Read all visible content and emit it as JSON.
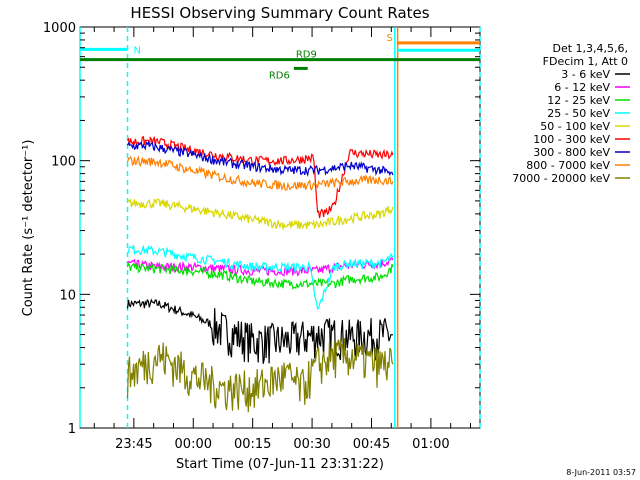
{
  "chart_data": {
    "type": "line",
    "title": "HESSI Observing Summary Count Rates",
    "xlabel": "Start Time (07-Jun-11 23:31:22)",
    "ylabel": "Count Rate (s⁻¹ detector⁻¹)",
    "y_scale": "log",
    "ylim": [
      1,
      1000
    ],
    "y_ticks": [
      {
        "value": 1,
        "label": "1"
      },
      {
        "value": 10,
        "label": "10"
      },
      {
        "value": 100,
        "label": "100"
      },
      {
        "value": 1000,
        "label": "1000"
      }
    ],
    "x_unit": "minutes after 23:31:22",
    "xlim": [
      0,
      101
    ],
    "x_ticks": [
      {
        "value": 13.6,
        "label": "23:45"
      },
      {
        "value": 28.6,
        "label": "00:00"
      },
      {
        "value": 43.6,
        "label": "00:15"
      },
      {
        "value": 58.6,
        "label": "00:30"
      },
      {
        "value": 73.6,
        "label": "00:45"
      },
      {
        "value": 88.6,
        "label": "01:00"
      }
    ],
    "legend": {
      "placement": "right",
      "header_lines": [
        "Det 1,3,4,5,6,",
        "FDecim 1, Att 0"
      ]
    },
    "series": [
      {
        "name": "3 - 6 keV",
        "color": "#000000",
        "x": [
          12,
          20,
          28,
          36,
          44,
          52,
          60,
          64,
          68,
          76,
          79
        ],
        "values": [
          8.5,
          8.5,
          7,
          5.5,
          4.5,
          4.5,
          5,
          5,
          4.8,
          5,
          5
        ]
      },
      {
        "name": "6 - 12 keV",
        "color": "#ff00ff",
        "x": [
          12,
          20,
          28,
          36,
          44,
          52,
          60,
          64,
          68,
          76,
          79
        ],
        "values": [
          17,
          16,
          16,
          15.5,
          15,
          15,
          15,
          16,
          16.5,
          17,
          18
        ]
      },
      {
        "name": "12 - 25 keV",
        "color": "#00e000",
        "x": [
          12,
          20,
          28,
          36,
          44,
          52,
          60,
          64,
          68,
          76,
          79
        ],
        "values": [
          16,
          15.5,
          15,
          14,
          12.5,
          12,
          12,
          12,
          13,
          13.5,
          16
        ]
      },
      {
        "name": "25 - 50 keV",
        "color": "#00ffff",
        "x": [
          12,
          20,
          28,
          36,
          44,
          52,
          58,
          60,
          64,
          68,
          76,
          79
        ],
        "values": [
          22,
          21,
          19,
          17.5,
          16,
          16,
          16,
          7.5,
          16,
          17,
          17,
          19
        ]
      },
      {
        "name": "50 - 100 keV",
        "color": "#d8d800",
        "x": [
          12,
          20,
          28,
          36,
          44,
          52,
          60,
          64,
          68,
          76,
          79
        ],
        "values": [
          48,
          48,
          44,
          40,
          36,
          33,
          33,
          35,
          37,
          40,
          45
        ]
      },
      {
        "name": "100 - 300 keV",
        "color": "#ff0000",
        "x": [
          12,
          16,
          20,
          28,
          36,
          44,
          52,
          59,
          60,
          62,
          64,
          68,
          76,
          79
        ],
        "values": [
          138,
          140,
          138,
          120,
          108,
          100,
          100,
          105,
          40,
          40,
          45,
          115,
          110,
          110
        ]
      },
      {
        "name": "300 - 800 keV",
        "color": "#0000cc",
        "x": [
          12,
          16,
          20,
          28,
          36,
          44,
          52,
          60,
          64,
          68,
          76,
          79
        ],
        "values": [
          128,
          130,
          125,
          112,
          98,
          90,
          85,
          85,
          88,
          92,
          85,
          78
        ]
      },
      {
        "name": "800 - 7000 keV",
        "color": "#ff8000",
        "x": [
          12,
          20,
          28,
          36,
          44,
          52,
          60,
          64,
          68,
          76,
          79
        ],
        "values": [
          100,
          98,
          85,
          75,
          68,
          65,
          66,
          68,
          70,
          72,
          70
        ]
      },
      {
        "name": "7000 - 20000 keV",
        "color": "#808000",
        "x": [
          12,
          16,
          20,
          24,
          28,
          36,
          44,
          52,
          56,
          60,
          64,
          68,
          76,
          79
        ],
        "values": [
          2.5,
          3,
          3.5,
          3,
          2.5,
          2,
          2,
          2.5,
          2,
          3,
          3.5,
          3.5,
          3,
          3
        ]
      }
    ],
    "annotations": [
      {
        "label": "N",
        "color": "#00ffff",
        "x_start": 0,
        "x_end": 12,
        "y": 680
      },
      {
        "label": "S",
        "color": "#ff8000",
        "x_start": 80,
        "x_end": 101,
        "y": 760
      },
      {
        "label": "",
        "color": "#00ffff",
        "x_start": 80,
        "x_end": 101,
        "y": 670
      },
      {
        "label": "RD9",
        "color": "#008000",
        "x_start": 0,
        "x_end": 101,
        "y": 570
      },
      {
        "label": "RD6",
        "color": "#008000",
        "x_start": 54,
        "x_end": 57.5,
        "y": 490
      }
    ],
    "vertical_markers": [
      {
        "x": 0,
        "color": "#00ffff",
        "style": "solid"
      },
      {
        "x": 12,
        "color": "#00ffff",
        "style": "dashed"
      },
      {
        "x": 79.5,
        "color": "#00ffff",
        "style": "solid"
      },
      {
        "x": 80.2,
        "color": "#ff8000",
        "style": "solid"
      },
      {
        "x": 101,
        "color": "#00ffff",
        "style": "dashed"
      }
    ]
  },
  "footer_timestamp": "8-Jun-2011 03:57"
}
